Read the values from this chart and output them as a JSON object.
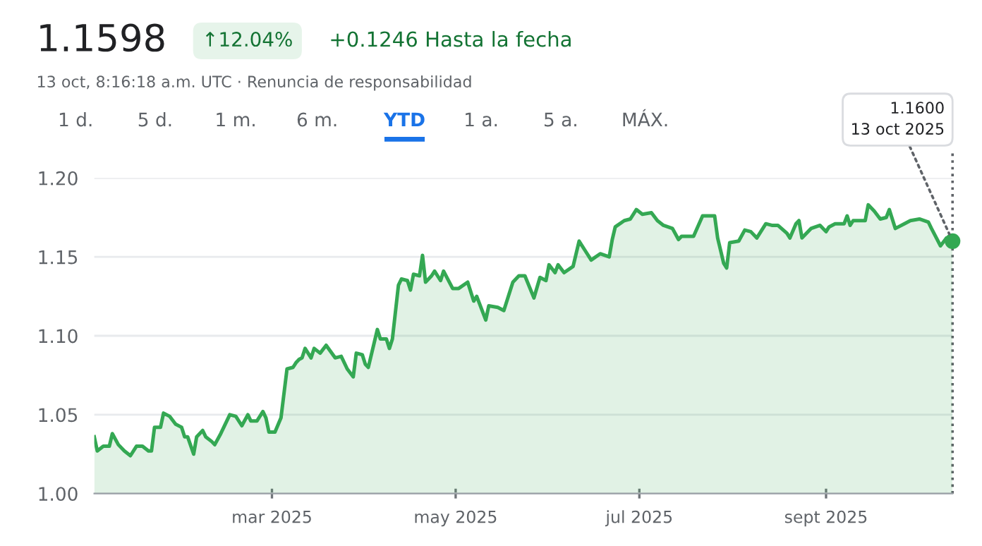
{
  "chart_data": {
    "type": "area",
    "title": "1.1598",
    "subtitle": "13 oct, 8:16:18 a.m. UTC · Renuncia de responsabilidad",
    "annotations": [
      "↑12.04%",
      "+0.1246 Hasta la fecha",
      "1 d.",
      "5 d.",
      "1 m.",
      "6 m.",
      "YTD",
      "1 a.",
      "5 a.",
      "MÁX.",
      {
        "text": "1.1600\n13 oct 2025",
        "x": "2025-10-13",
        "y": 1.16
      }
    ],
    "x": [
      "2025-01-01",
      "2025-01-02",
      "2025-01-04",
      "2025-01-06",
      "2025-01-07",
      "2025-01-09",
      "2025-01-11",
      "2025-01-13",
      "2025-01-15",
      "2025-01-17",
      "2025-01-19",
      "2025-01-20",
      "2025-01-21",
      "2025-01-23",
      "2025-01-24",
      "2025-01-26",
      "2025-01-28",
      "2025-01-30",
      "2025-01-31",
      "2025-02-01",
      "2025-02-03",
      "2025-02-04",
      "2025-02-06",
      "2025-02-07",
      "2025-02-09",
      "2025-02-10",
      "2025-02-12",
      "2025-02-15",
      "2025-02-17",
      "2025-02-19",
      "2025-02-21",
      "2025-02-22",
      "2025-02-24",
      "2025-02-26",
      "2025-02-27",
      "2025-02-28",
      "2025-03-02",
      "2025-03-04",
      "2025-03-06",
      "2025-03-08",
      "2025-03-09",
      "2025-03-10",
      "2025-03-11",
      "2025-03-12",
      "2025-03-14",
      "2025-03-15",
      "2025-03-17",
      "2025-03-19",
      "2025-03-22",
      "2025-03-24",
      "2025-03-26",
      "2025-03-28",
      "2025-03-29",
      "2025-03-31",
      "2025-04-01",
      "2025-04-02",
      "2025-04-05",
      "2025-04-06",
      "2025-04-08",
      "2025-04-09",
      "2025-04-10",
      "2025-04-12",
      "2025-04-13",
      "2025-04-15",
      "2025-04-16",
      "2025-04-17",
      "2025-04-19",
      "2025-04-20",
      "2025-04-21",
      "2025-04-23",
      "2025-04-24",
      "2025-04-26",
      "2025-04-27",
      "2025-04-30",
      "2025-05-02",
      "2025-05-05",
      "2025-05-07",
      "2025-05-08",
      "2025-05-11",
      "2025-05-12",
      "2025-05-15",
      "2025-05-17",
      "2025-05-20",
      "2025-05-22",
      "2025-05-24",
      "2025-05-27",
      "2025-05-29",
      "2025-05-31",
      "2025-06-01",
      "2025-06-03",
      "2025-06-04",
      "2025-06-06",
      "2025-06-09",
      "2025-06-11",
      "2025-06-13",
      "2025-06-15",
      "2025-06-18",
      "2025-06-21",
      "2025-06-22",
      "2025-06-23",
      "2025-06-26",
      "2025-06-28",
      "2025-06-30",
      "2025-07-02",
      "2025-07-05",
      "2025-07-07",
      "2025-07-09",
      "2025-07-12",
      "2025-07-14",
      "2025-07-15",
      "2025-07-19",
      "2025-07-22",
      "2025-07-24",
      "2025-07-26",
      "2025-07-27",
      "2025-07-29",
      "2025-07-30",
      "2025-07-31",
      "2025-08-03",
      "2025-08-05",
      "2025-08-07",
      "2025-08-09",
      "2025-08-12",
      "2025-08-14",
      "2025-08-16",
      "2025-08-19",
      "2025-08-20",
      "2025-08-22",
      "2025-08-23",
      "2025-08-24",
      "2025-08-27",
      "2025-08-30",
      "2025-09-01",
      "2025-09-02",
      "2025-09-04",
      "2025-09-07",
      "2025-09-08",
      "2025-09-09",
      "2025-09-10",
      "2025-09-13",
      "2025-09-14",
      "2025-09-15",
      "2025-09-17",
      "2025-09-19",
      "2025-09-21",
      "2025-09-22",
      "2025-09-24",
      "2025-09-27",
      "2025-09-29",
      "2025-10-02",
      "2025-10-05",
      "2025-10-06",
      "2025-10-09",
      "2025-10-11",
      "2025-10-13"
    ],
    "series": [
      {
        "color": "#34a853",
        "values": [
          1.036,
          1.027,
          1.03,
          1.03,
          1.038,
          1.031,
          1.027,
          1.024,
          1.03,
          1.03,
          1.027,
          1.027,
          1.042,
          1.042,
          1.051,
          1.049,
          1.044,
          1.042,
          1.036,
          1.036,
          1.025,
          1.036,
          1.04,
          1.036,
          1.033,
          1.031,
          1.038,
          1.05,
          1.049,
          1.043,
          1.05,
          1.046,
          1.046,
          1.052,
          1.048,
          1.039,
          1.039,
          1.048,
          1.079,
          1.08,
          1.083,
          1.085,
          1.086,
          1.092,
          1.086,
          1.092,
          1.089,
          1.094,
          1.086,
          1.087,
          1.079,
          1.074,
          1.089,
          1.088,
          1.082,
          1.08,
          1.104,
          1.098,
          1.098,
          1.092,
          1.098,
          1.132,
          1.136,
          1.135,
          1.129,
          1.139,
          1.138,
          1.151,
          1.134,
          1.138,
          1.141,
          1.135,
          1.141,
          1.13,
          1.13,
          1.134,
          1.122,
          1.125,
          1.11,
          1.119,
          1.118,
          1.116,
          1.134,
          1.138,
          1.138,
          1.124,
          1.137,
          1.135,
          1.145,
          1.14,
          1.145,
          1.14,
          1.144,
          1.16,
          1.154,
          1.148,
          1.152,
          1.15,
          1.161,
          1.169,
          1.173,
          1.174,
          1.18,
          1.177,
          1.178,
          1.173,
          1.17,
          1.168,
          1.161,
          1.163,
          1.163,
          1.176,
          1.176,
          1.176,
          1.162,
          1.146,
          1.143,
          1.159,
          1.16,
          1.167,
          1.166,
          1.162,
          1.171,
          1.17,
          1.17,
          1.165,
          1.162,
          1.171,
          1.173,
          1.162,
          1.168,
          1.17,
          1.166,
          1.169,
          1.171,
          1.171,
          1.176,
          1.17,
          1.173,
          1.173,
          1.173,
          1.183,
          1.179,
          1.174,
          1.175,
          1.18,
          1.168,
          1.171,
          1.173,
          1.174,
          1.172,
          1.168,
          1.157,
          1.162,
          1.16
        ]
      }
    ],
    "xlim": [
      "2025-01-01",
      "2025-10-13"
    ],
    "xticks": [
      {
        "value": "2025-03-01",
        "label": "mar 2025"
      },
      {
        "value": "2025-05-01",
        "label": "may 2025"
      },
      {
        "value": "2025-07-01",
        "label": "jul 2025"
      },
      {
        "value": "2025-09-01",
        "label": "sept 2025"
      }
    ],
    "ylim": [
      1.0,
      1.2
    ],
    "yticks": [
      {
        "value": 1.0,
        "label": "1.00"
      },
      {
        "value": 1.05,
        "label": "1.05"
      },
      {
        "value": 1.1,
        "label": "1.10"
      },
      {
        "value": 1.15,
        "label": "1.15"
      },
      {
        "value": 1.2,
        "label": "1.20"
      }
    ],
    "ref_lines": [
      {
        "axis": "x",
        "value": "2025-10-13",
        "label": null,
        "color": "#5f6368",
        "line_style": "dotted"
      }
    ],
    "grid": "y"
  }
}
